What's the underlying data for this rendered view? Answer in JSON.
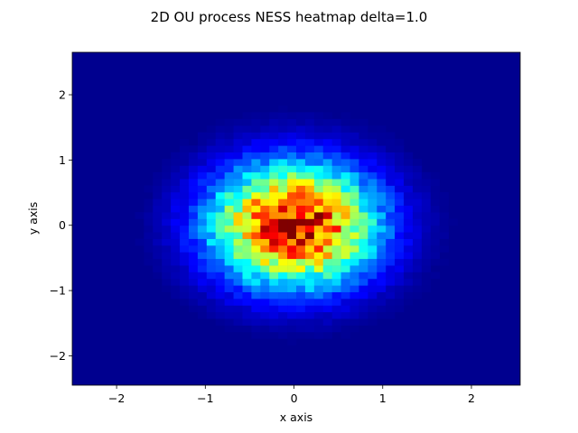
{
  "chart_data": {
    "type": "heatmap",
    "title": "2D OU process NESS heatmap delta=1.0",
    "xlabel": "x axis",
    "ylabel": "y axis",
    "xlim": [
      -2.5,
      2.55
    ],
    "ylim": [
      -2.45,
      2.65
    ],
    "xticks": [
      -2,
      -1,
      0,
      1,
      2
    ],
    "yticks": [
      -2,
      -1,
      0,
      1,
      2
    ],
    "xtick_labels": [
      "−2",
      "−1",
      "0",
      "1",
      "2"
    ],
    "ytick_labels": [
      "−2",
      "−1",
      "0",
      "1",
      "2"
    ],
    "colormap": "jet",
    "bins": [
      50,
      50
    ],
    "distribution": {
      "kind": "gaussian-like 2D density (approximate)",
      "center": [
        0.0,
        0.0
      ],
      "spread": [
        0.6,
        0.6
      ]
    },
    "grid": false,
    "legend": "none"
  }
}
